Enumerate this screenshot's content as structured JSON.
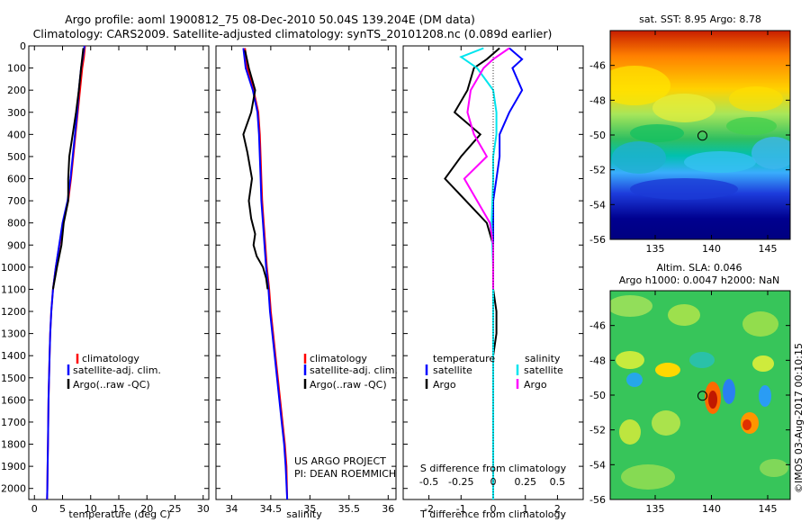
{
  "title": {
    "line1": "Argo profile: aoml 1900812_75 08-Dec-2010 50.04S 139.204E (DM data)",
    "line2": "Climatology: CARS2009. Satellite-adjusted climatology: synTS_20101208.nc (0.089d earlier)"
  },
  "footer": {
    "project": "US ARGO PROJECT",
    "pi": "PI: DEAN ROEMMICH",
    "stamp": "©IMOS 03-Aug-2017 00:10:15"
  },
  "colors": {
    "climatology": "#ff0000",
    "satellite": "#0000ff",
    "argo": "#000000",
    "cyan": "#00e5ee",
    "magenta": "#ff00ff"
  },
  "chart_data": [
    {
      "type": "line",
      "xlabel": "temperature (deg C)",
      "xlim": [
        -1,
        31
      ],
      "xticks": [
        0,
        5,
        10,
        15,
        20,
        25,
        30
      ],
      "ylim": [
        0,
        2050
      ],
      "yticks": [
        0,
        100,
        200,
        300,
        400,
        500,
        600,
        700,
        800,
        900,
        1000,
        1100,
        1200,
        1300,
        1400,
        1500,
        1600,
        1700,
        1800,
        1900,
        2000
      ],
      "legend": [
        "climatology",
        "satellite-adj. clim.",
        "Argo(..raw -QC)"
      ],
      "series": [
        {
          "name": "climatology",
          "color": "red",
          "x": [
            9.0,
            8.8,
            8.5,
            8.1,
            7.7,
            7.3,
            6.9,
            6.5,
            6.0,
            5.1,
            3.8,
            3.3,
            3.0,
            2.8,
            2.7,
            2.6,
            2.5,
            2.45,
            2.4,
            2.35,
            2.3,
            2.25
          ],
          "y": [
            0,
            50,
            100,
            200,
            300,
            400,
            500,
            600,
            700,
            800,
            1000,
            1100,
            1200,
            1300,
            1400,
            1500,
            1600,
            1700,
            1800,
            1900,
            2000,
            2050
          ]
        },
        {
          "name": "satellite-adj. clim.",
          "color": "blue",
          "x": [
            8.9,
            8.6,
            8.3,
            7.9,
            7.6,
            7.2,
            6.8,
            6.4,
            5.9,
            5.0,
            3.8,
            3.3,
            3.0,
            2.8,
            2.7,
            2.6,
            2.5,
            2.45,
            2.4,
            2.35,
            2.3,
            2.25
          ],
          "y": [
            0,
            50,
            100,
            200,
            300,
            400,
            500,
            600,
            700,
            800,
            1000,
            1100,
            1200,
            1300,
            1400,
            1500,
            1600,
            1700,
            1800,
            1900,
            2000,
            2050
          ]
        },
        {
          "name": "Argo(..raw -QC)",
          "color": "black",
          "x": [
            8.7,
            8.3,
            7.9,
            7.4,
            6.8,
            6.2,
            6.0,
            6.0,
            5.2,
            4.8,
            4.0,
            3.3
          ],
          "y": [
            10,
            100,
            200,
            300,
            400,
            500,
            600,
            700,
            800,
            900,
            1000,
            1100
          ]
        }
      ]
    },
    {
      "type": "line",
      "xlabel": "salinity",
      "xlim": [
        33.8,
        36.1
      ],
      "xticks": [
        34,
        34.5,
        35,
        35.5,
        36
      ],
      "ylim": [
        0,
        2050
      ],
      "legend": [
        "climatology",
        "satellite-adj. clim.",
        "Argo(..raw -QC)"
      ],
      "series": [
        {
          "name": "climatology",
          "color": "red",
          "x": [
            34.17,
            34.2,
            34.28,
            34.34,
            34.36,
            34.37,
            34.38,
            34.39,
            34.41,
            34.43,
            34.45,
            34.48,
            34.5,
            34.53,
            34.56,
            34.59,
            34.62,
            34.65,
            34.68,
            34.7,
            34.71
          ],
          "y": [
            10,
            100,
            200,
            300,
            400,
            500,
            600,
            700,
            800,
            900,
            1000,
            1100,
            1200,
            1300,
            1400,
            1500,
            1600,
            1700,
            1800,
            1900,
            2050
          ]
        },
        {
          "name": "satellite-adj. clim.",
          "color": "blue",
          "x": [
            34.15,
            34.18,
            34.27,
            34.33,
            34.35,
            34.36,
            34.37,
            34.38,
            34.4,
            34.42,
            34.44,
            34.47,
            34.49,
            34.52,
            34.55,
            34.58,
            34.61,
            34.64,
            34.67,
            34.69,
            34.71
          ],
          "y": [
            10,
            100,
            200,
            300,
            400,
            500,
            600,
            700,
            800,
            900,
            1000,
            1100,
            1200,
            1300,
            1400,
            1500,
            1600,
            1700,
            1800,
            1900,
            2050
          ]
        },
        {
          "name": "Argo(..raw -QC)",
          "color": "black",
          "x": [
            34.17,
            34.22,
            34.3,
            34.25,
            34.15,
            34.2,
            34.26,
            34.22,
            34.25,
            34.3,
            34.28,
            34.32,
            34.4,
            34.44,
            34.46
          ],
          "y": [
            20,
            100,
            200,
            300,
            400,
            480,
            600,
            700,
            780,
            850,
            900,
            950,
            1000,
            1050,
            1100
          ]
        }
      ]
    },
    {
      "type": "line",
      "xlabel": "T difference from climatology",
      "x2label": "S difference from climatology",
      "xlim": [
        -2.8,
        2.8
      ],
      "xticks": [
        -2,
        -1,
        0,
        1,
        2
      ],
      "x2ticks": [
        -0.5,
        -0.25,
        0,
        0.25,
        0.5
      ],
      "ylim": [
        0,
        2050
      ],
      "legend": {
        "temperature_header": "temperature",
        "salinity_header": "salinity",
        "items": [
          "satellite",
          "Argo",
          "satellite",
          "Argo"
        ]
      },
      "series": [
        {
          "name": "temperature satellite",
          "color": "blue",
          "x": [
            0.5,
            0.9,
            0.6,
            0.9,
            0.5,
            0.2,
            0.2,
            0.1,
            0.0,
            0.0,
            0.0,
            0.0
          ],
          "y": [
            10,
            60,
            100,
            200,
            300,
            400,
            500,
            600,
            700,
            800,
            900,
            1100
          ]
        },
        {
          "name": "temperature Argo",
          "color": "black",
          "x": [
            0.2,
            -0.2,
            -0.6,
            -0.8,
            -1.2,
            -0.4,
            -1.0,
            -1.5,
            -0.2,
            0.0,
            0.0,
            0.0,
            0.1,
            0.1,
            0.0,
            0.0
          ],
          "y": [
            10,
            60,
            100,
            200,
            300,
            400,
            500,
            600,
            800,
            900,
            1000,
            1100,
            1200,
            1300,
            1400,
            1500
          ]
        },
        {
          "name": "salinity satellite",
          "color": "cyan",
          "x": [
            -0.3,
            -1.0,
            -0.5,
            0.0,
            0.1,
            0.1,
            0.0,
            0.0,
            -0.05,
            0.0,
            0.0,
            0.0,
            0.0
          ],
          "y": [
            10,
            50,
            100,
            200,
            300,
            400,
            500,
            600,
            800,
            1000,
            1500,
            2000,
            2050
          ]
        },
        {
          "name": "salinity Argo",
          "color": "magenta",
          "x": [
            0.5,
            0.0,
            -0.3,
            -0.7,
            -0.8,
            -0.6,
            -0.2,
            -0.9,
            -0.1,
            0.0,
            0.0,
            0.0
          ],
          "y": [
            10,
            60,
            100,
            200,
            300,
            400,
            500,
            600,
            800,
            900,
            1000,
            1100
          ]
        }
      ]
    },
    {
      "type": "heatmap",
      "title": "sat. SST: 8.95  Argo: 8.78",
      "xticks": [
        135,
        140,
        145
      ],
      "yticks": [
        -46,
        -48,
        -50,
        -52,
        -54,
        -56
      ],
      "xlim": [
        131,
        147
      ],
      "ylim": [
        -56,
        -44
      ],
      "marker": {
        "lon": 139.2,
        "lat": -50.04
      },
      "colormap": "jet",
      "pattern": "warm (red/orange) north, green mid, blue/dark blue south"
    },
    {
      "type": "heatmap",
      "title_line1": "Altim. SLA: 0.046",
      "title_line2": "Argo h1000: 0.0047 h2000: NaN",
      "xticks": [
        135,
        140,
        145
      ],
      "yticks": [
        -46,
        -48,
        -50,
        -52,
        -54,
        -56
      ],
      "xlim": [
        131,
        147
      ],
      "ylim": [
        -56,
        -44
      ],
      "marker": {
        "lon": 139.2,
        "lat": -50.04
      },
      "colormap": "jet",
      "pattern": "mostly green with scattered yellow/blue eddies and a red eddy near 140E 50.5S"
    }
  ]
}
